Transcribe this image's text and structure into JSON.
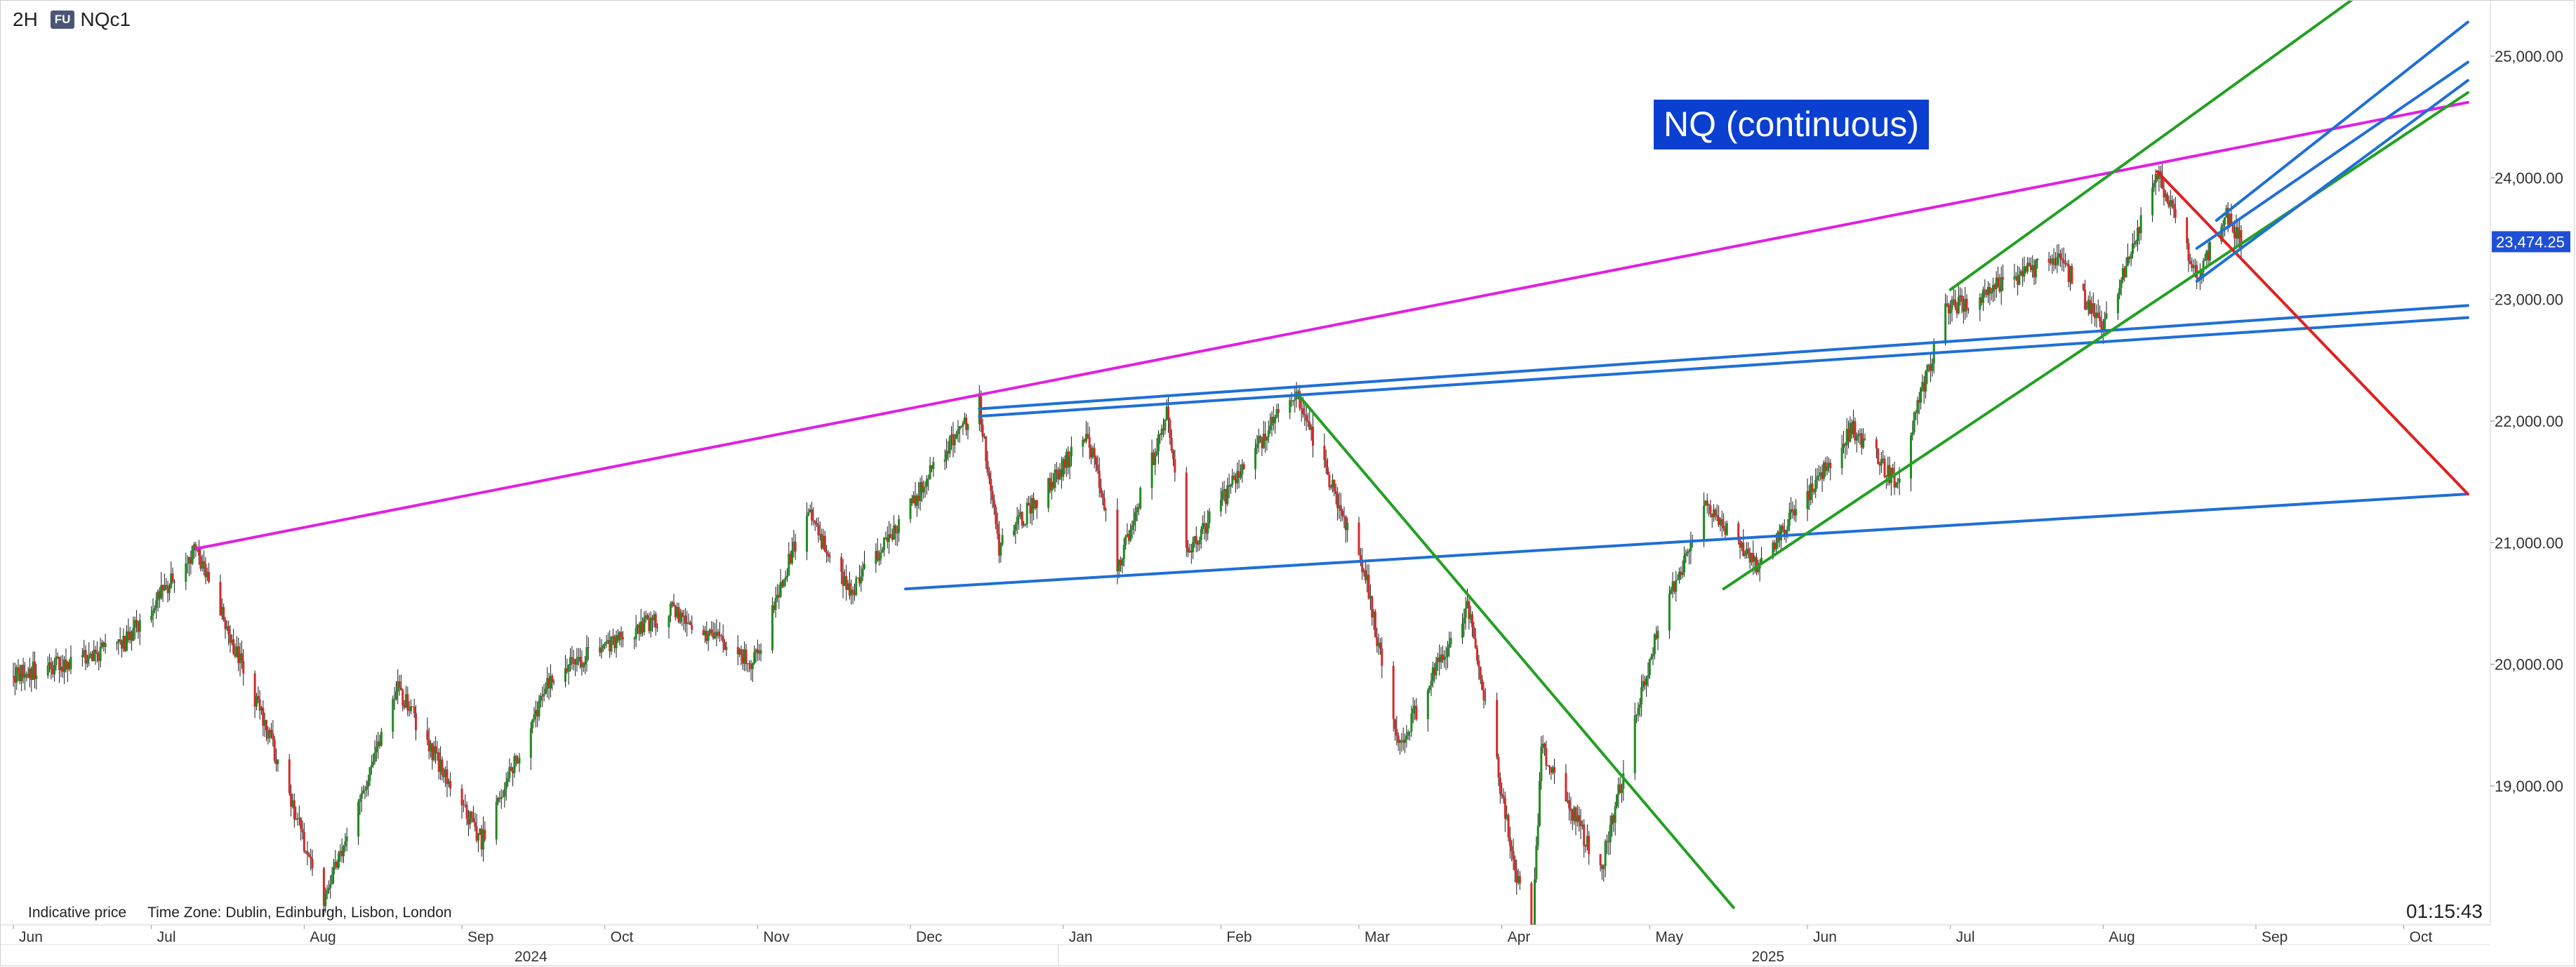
{
  "header": {
    "interval": "2H",
    "instrument_badge": "FU",
    "symbol": "NQc1"
  },
  "footer": {
    "note": "Indicative price",
    "timezone": "Time Zone: Dublin, Edinburgh, Lisbon, London",
    "clock": "01:15:43"
  },
  "chart_data": {
    "type": "candlestick",
    "title": "NQ (continuous)",
    "ylim": [
      18000,
      25800
    ],
    "y_ticks": [
      19000,
      20000,
      21000,
      22000,
      23000,
      24000,
      25000
    ],
    "y_tick_labels": [
      "19,000.00",
      "20,000.00",
      "21,000.00",
      "22,000.00",
      "23,000.00",
      "24,000.00",
      "25,000.00"
    ],
    "last_price": 23474.25,
    "last_price_label": "23,474.25",
    "x_months": [
      "Jun",
      "Jul",
      "Aug",
      "Sep",
      "Oct",
      "Nov",
      "Dec",
      "Jan",
      "Feb",
      "Mar",
      "Apr",
      "May",
      "Jun",
      "Jul",
      "Aug",
      "Sep",
      "Oct"
    ],
    "x_years": [
      "2024",
      "2025"
    ],
    "price_path": [
      {
        "t": "2024-06-03",
        "p": 19900
      },
      {
        "t": "2024-06-25",
        "p": 20150
      },
      {
        "t": "2024-07-10",
        "p": 20950
      },
      {
        "t": "2024-07-25",
        "p": 19400
      },
      {
        "t": "2024-08-05",
        "p": 18050
      },
      {
        "t": "2024-08-20",
        "p": 19800
      },
      {
        "t": "2024-09-06",
        "p": 18550
      },
      {
        "t": "2024-09-20",
        "p": 19900
      },
      {
        "t": "2024-10-15",
        "p": 20450
      },
      {
        "t": "2024-10-31",
        "p": 20000
      },
      {
        "t": "2024-11-11",
        "p": 21250
      },
      {
        "t": "2024-11-20",
        "p": 20600
      },
      {
        "t": "2024-12-05",
        "p": 21500
      },
      {
        "t": "2024-12-16",
        "p": 22150
      },
      {
        "t": "2024-12-20",
        "p": 20950
      },
      {
        "t": "2025-01-07",
        "p": 21900
      },
      {
        "t": "2025-01-13",
        "p": 20800
      },
      {
        "t": "2025-01-23",
        "p": 22050
      },
      {
        "t": "2025-01-27",
        "p": 20900
      },
      {
        "t": "2025-02-18",
        "p": 22250
      },
      {
        "t": "2025-03-04",
        "p": 20800
      },
      {
        "t": "2025-03-11",
        "p": 19300
      },
      {
        "t": "2025-03-25",
        "p": 20500
      },
      {
        "t": "2025-04-07",
        "p": 17600
      },
      {
        "t": "2025-04-09",
        "p": 19300
      },
      {
        "t": "2025-04-21",
        "p": 18300
      },
      {
        "t": "2025-05-02",
        "p": 20200
      },
      {
        "t": "2025-05-12",
        "p": 21300
      },
      {
        "t": "2025-05-23",
        "p": 20800
      },
      {
        "t": "2025-06-11",
        "p": 21950
      },
      {
        "t": "2025-06-20",
        "p": 21500
      },
      {
        "t": "2025-06-30",
        "p": 22900
      },
      {
        "t": "2025-07-23",
        "p": 23350
      },
      {
        "t": "2025-08-01",
        "p": 22750
      },
      {
        "t": "2025-08-12",
        "p": 24050
      },
      {
        "t": "2025-08-20",
        "p": 23200
      },
      {
        "t": "2025-08-26",
        "p": 23700
      },
      {
        "t": "2025-08-29",
        "p": 23474
      }
    ],
    "trendlines": [
      {
        "color": "#e020e0",
        "from": {
          "t": "2024-07-10",
          "p": 20950
        },
        "to": {
          "t": "2025-10-14",
          "p": 24620
        }
      },
      {
        "color": "#1f6fd6",
        "from": {
          "t": "2024-12-16",
          "p": 22100
        },
        "to": {
          "t": "2025-10-14",
          "p": 22950
        }
      },
      {
        "color": "#1f6fd6",
        "from": {
          "t": "2024-12-16",
          "p": 22040
        },
        "to": {
          "t": "2025-10-14",
          "p": 22850
        }
      },
      {
        "color": "#1f6fd6",
        "from": {
          "t": "2024-12-01",
          "p": 20620
        },
        "to": {
          "t": "2025-10-14",
          "p": 21400
        }
      },
      {
        "color": "#22a022",
        "from": {
          "t": "2025-02-19",
          "p": 22200
        },
        "to": {
          "t": "2025-05-18",
          "p": 18000
        }
      },
      {
        "color": "#22a022",
        "from": {
          "t": "2025-05-16",
          "p": 20620
        },
        "to": {
          "t": "2025-10-14",
          "p": 24700
        }
      },
      {
        "color": "#22a022",
        "from": {
          "t": "2025-07-01",
          "p": 23080
        },
        "to": {
          "t": "2025-10-02",
          "p": 25800
        }
      },
      {
        "color": "#e02020",
        "from": {
          "t": "2025-08-12",
          "p": 24050
        },
        "to": {
          "t": "2025-10-14",
          "p": 21400
        }
      },
      {
        "color": "#1f6fd6",
        "from": {
          "t": "2025-08-20",
          "p": 23150
        },
        "to": {
          "t": "2025-10-14",
          "p": 24800
        }
      },
      {
        "color": "#1f6fd6",
        "from": {
          "t": "2025-08-20",
          "p": 23420
        },
        "to": {
          "t": "2025-10-14",
          "p": 24950
        }
      },
      {
        "color": "#1f6fd6",
        "from": {
          "t": "2025-08-24",
          "p": 23650
        },
        "to": {
          "t": "2025-10-14",
          "p": 25280
        }
      }
    ],
    "candle_up_color": "#1e8c1e",
    "candle_down_color": "#d42a2a",
    "grid": false
  }
}
